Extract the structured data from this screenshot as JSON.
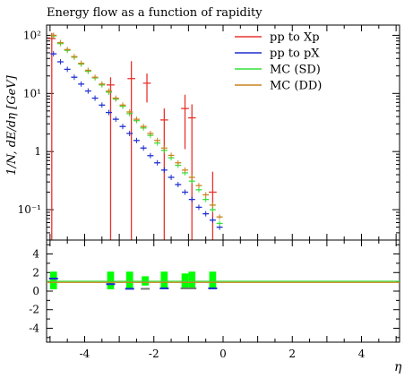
{
  "chart_data": {
    "type": "scatter",
    "title": "Energy flow as a function of rapidity",
    "xlabel": "η",
    "ylabel": "1/N, dE/dη [GeV]",
    "xlim": [
      -5.1,
      5.1
    ],
    "ylim": [
      0.03,
      150
    ],
    "yscale": "log",
    "ratio_ylim": [
      -5.5,
      5.5
    ],
    "x_ticks": [
      "-4",
      "-2",
      "0",
      "2",
      "4"
    ],
    "x_tick_values": [
      -4,
      -2,
      0,
      2,
      4
    ],
    "y_ticks": [
      "10⁻¹",
      "1",
      "10¹",
      "10²"
    ],
    "y_tick_values": [
      0.1,
      1,
      10,
      100
    ],
    "ratio_ticks": [
      "4",
      "2",
      "0",
      "-2",
      "-4"
    ],
    "ratio_tick_values": [
      4,
      2,
      0,
      -2,
      -4
    ],
    "legend_position": "top-right",
    "series": [
      {
        "name": "pp to Xp",
        "color": "#e8332e",
        "points": [
          {
            "x": -4.95,
            "y": 88,
            "ylo": 0.03,
            "yhi": 110
          },
          {
            "x": -3.25,
            "y": 14,
            "ylo": 0.03,
            "yhi": 19
          },
          {
            "x": -2.65,
            "y": 18,
            "ylo": 0.03,
            "yhi": 36
          },
          {
            "x": -2.2,
            "y": 15,
            "ylo": 7,
            "yhi": 22
          },
          {
            "x": -1.7,
            "y": 3.5,
            "ylo": 0.03,
            "yhi": 5.5
          },
          {
            "x": -1.1,
            "y": 5.5,
            "ylo": 1.1,
            "yhi": 9.5
          },
          {
            "x": -0.9,
            "y": 3.8,
            "ylo": 0.03,
            "yhi": 6.5
          },
          {
            "x": -0.3,
            "y": 0.2,
            "ylo": 0.03,
            "yhi": 0.45
          }
        ]
      },
      {
        "name": "pp to pX",
        "color": "#1f2dcf",
        "points": [
          {
            "x": -4.9,
            "y": 48
          },
          {
            "x": -4.7,
            "y": 35
          },
          {
            "x": -4.5,
            "y": 26
          },
          {
            "x": -4.3,
            "y": 19
          },
          {
            "x": -4.1,
            "y": 14.5
          },
          {
            "x": -3.9,
            "y": 11
          },
          {
            "x": -3.7,
            "y": 8.3
          },
          {
            "x": -3.5,
            "y": 6.3
          },
          {
            "x": -3.3,
            "y": 4.7
          },
          {
            "x": -3.1,
            "y": 3.6
          },
          {
            "x": -2.9,
            "y": 2.7
          },
          {
            "x": -2.7,
            "y": 2.05
          },
          {
            "x": -2.5,
            "y": 1.55
          },
          {
            "x": -2.3,
            "y": 1.15
          },
          {
            "x": -2.1,
            "y": 0.85
          },
          {
            "x": -1.9,
            "y": 0.64
          },
          {
            "x": -1.7,
            "y": 0.48
          },
          {
            "x": -1.5,
            "y": 0.36
          },
          {
            "x": -1.3,
            "y": 0.27
          },
          {
            "x": -1.1,
            "y": 0.2
          },
          {
            "x": -0.9,
            "y": 0.15
          },
          {
            "x": -0.7,
            "y": 0.11
          },
          {
            "x": -0.5,
            "y": 0.085
          },
          {
            "x": -0.3,
            "y": 0.066
          },
          {
            "x": -0.1,
            "y": 0.05
          }
        ]
      },
      {
        "name": "MC (SD)",
        "color": "#35e03c",
        "points": [
          {
            "x": -4.9,
            "y": 98
          },
          {
            "x": -4.7,
            "y": 72
          },
          {
            "x": -4.5,
            "y": 55
          },
          {
            "x": -4.3,
            "y": 42
          },
          {
            "x": -4.1,
            "y": 32
          },
          {
            "x": -3.9,
            "y": 24
          },
          {
            "x": -3.7,
            "y": 18.5
          },
          {
            "x": -3.5,
            "y": 14
          },
          {
            "x": -3.3,
            "y": 10.5
          },
          {
            "x": -3.1,
            "y": 8
          },
          {
            "x": -2.9,
            "y": 6
          },
          {
            "x": -2.7,
            "y": 4.5
          },
          {
            "x": -2.5,
            "y": 3.4
          },
          {
            "x": -2.3,
            "y": 2.55
          },
          {
            "x": -2.1,
            "y": 1.9
          },
          {
            "x": -1.9,
            "y": 1.4
          },
          {
            "x": -1.7,
            "y": 1.05
          },
          {
            "x": -1.5,
            "y": 0.78
          },
          {
            "x": -1.3,
            "y": 0.58
          },
          {
            "x": -1.1,
            "y": 0.43
          },
          {
            "x": -0.9,
            "y": 0.31
          },
          {
            "x": -0.7,
            "y": 0.22
          },
          {
            "x": -0.5,
            "y": 0.15
          },
          {
            "x": -0.3,
            "y": 0.1
          },
          {
            "x": -0.1,
            "y": 0.058
          }
        ]
      },
      {
        "name": "MC (DD)",
        "color": "#c8841e",
        "points": [
          {
            "x": -4.9,
            "y": 100
          },
          {
            "x": -4.7,
            "y": 75
          },
          {
            "x": -4.5,
            "y": 57
          },
          {
            "x": -4.3,
            "y": 43
          },
          {
            "x": -4.1,
            "y": 33
          },
          {
            "x": -3.9,
            "y": 25
          },
          {
            "x": -3.7,
            "y": 19
          },
          {
            "x": -3.5,
            "y": 14.5
          },
          {
            "x": -3.3,
            "y": 11
          },
          {
            "x": -3.1,
            "y": 8.3
          },
          {
            "x": -2.9,
            "y": 6.3
          },
          {
            "x": -2.7,
            "y": 4.8
          },
          {
            "x": -2.5,
            "y": 3.6
          },
          {
            "x": -2.3,
            "y": 2.7
          },
          {
            "x": -2.1,
            "y": 2.05
          },
          {
            "x": -1.9,
            "y": 1.55
          },
          {
            "x": -1.7,
            "y": 1.15
          },
          {
            "x": -1.5,
            "y": 0.86
          },
          {
            "x": -1.3,
            "y": 0.64
          },
          {
            "x": -1.1,
            "y": 0.48
          },
          {
            "x": -0.9,
            "y": 0.36
          },
          {
            "x": -0.7,
            "y": 0.26
          },
          {
            "x": -0.5,
            "y": 0.18
          },
          {
            "x": -0.3,
            "y": 0.12
          },
          {
            "x": -0.1,
            "y": 0.075
          }
        ]
      }
    ],
    "ratio_bands": [
      {
        "x0": -5.0,
        "x1": -4.8,
        "lo": 0.2,
        "hi": 2.1
      },
      {
        "x0": -3.35,
        "x1": -3.15,
        "lo": 0.2,
        "hi": 2.1
      },
      {
        "x0": -2.8,
        "x1": -2.6,
        "lo": 0.3,
        "hi": 2.1
      },
      {
        "x0": -2.35,
        "x1": -2.15,
        "lo": 0.6,
        "hi": 1.6
      },
      {
        "x0": -1.8,
        "x1": -1.6,
        "lo": 0.2,
        "hi": 2.1
      },
      {
        "x0": -1.2,
        "x1": -1.0,
        "lo": 0.2,
        "hi": 1.9
      },
      {
        "x0": -1.0,
        "x1": -0.8,
        "lo": 0.2,
        "hi": 2.1
      },
      {
        "x0": -0.4,
        "x1": -0.2,
        "lo": 0.2,
        "hi": 2.1
      }
    ],
    "ratio_markers": [
      {
        "x": -4.9,
        "y": 1.35,
        "color": "#1f2dcf"
      },
      {
        "x": -3.25,
        "y": 0.75,
        "color": "#1f2dcf"
      },
      {
        "x": -2.7,
        "y": 0.25,
        "color": "#1f2dcf"
      },
      {
        "x": -2.25,
        "y": 0.25,
        "color": "#777777"
      },
      {
        "x": -1.7,
        "y": 0.3,
        "color": "#1f2dcf"
      },
      {
        "x": -1.1,
        "y": 0.3,
        "color": "#777777"
      },
      {
        "x": -0.9,
        "y": 0.3,
        "color": "#777777"
      },
      {
        "x": -0.3,
        "y": 0.3,
        "color": "#1f2dcf"
      }
    ],
    "ratio_reference_lines": [
      {
        "y": 1,
        "color": "#35e03c"
      },
      {
        "y": 1,
        "color": "#c8841e"
      }
    ]
  }
}
